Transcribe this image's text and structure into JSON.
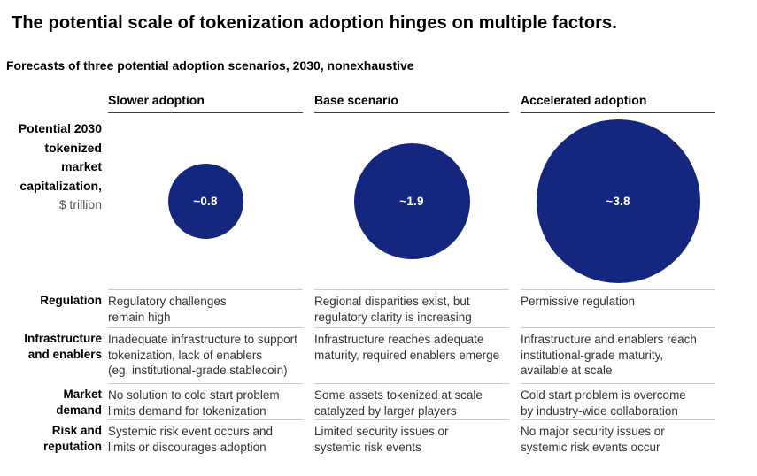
{
  "title": "The potential scale of tokenization adoption hinges on multiple factors.",
  "subtitle": "Forecasts of three potential adoption scenarios, 2030, nonexhaustive",
  "colors": {
    "bubble": "#15267E",
    "rule_light": "#c9c9c9",
    "rule_dark": "#3d3d3d",
    "body_text": "#333333"
  },
  "chart_data": {
    "type": "bubble",
    "title": "Forecasts of three potential adoption scenarios, 2030, nonexhaustive",
    "categories": [
      "Slower adoption",
      "Base scenario",
      "Accelerated adoption"
    ],
    "values": [
      0.8,
      1.9,
      3.8
    ],
    "value_labels": [
      "~0.8",
      "~1.9",
      "~3.8"
    ],
    "metric_label_lines": [
      "Potential 2030",
      "tokenized",
      "market",
      "capitalization,"
    ],
    "metric_unit": "$ trillion",
    "legend_position": "none",
    "grid": false,
    "rows": [
      {
        "label": "Regulation",
        "cells": [
          "Regulatory challenges\nremain high",
          "Regional disparities exist, but\nregulatory clarity is increasing",
          "Permissive regulation"
        ]
      },
      {
        "label": "Infrastructure\nand enablers",
        "cells": [
          "Inadequate infrastructure to support\ntokenization, lack of enablers\n(eg, institutional-grade stablecoin)",
          "Infrastructure reaches adequate\nmaturity, required enablers emerge",
          "Infrastructure and enablers reach\ninstitutional-grade maturity,\navailable at scale"
        ]
      },
      {
        "label": "Market\ndemand",
        "cells": [
          "No solution to cold start problem\nlimits demand for tokenization",
          "Some assets tokenized at scale\ncatalyzed by larger players",
          "Cold start problem is overcome\nby industry-wide collaboration"
        ]
      },
      {
        "label": "Risk and\nreputation",
        "cells": [
          "Systemic risk event occurs and\nlimits or discourages adoption",
          "Limited security issues or\nsystemic risk events",
          "No major security issues or\nsystemic risk events occur"
        ]
      }
    ]
  }
}
